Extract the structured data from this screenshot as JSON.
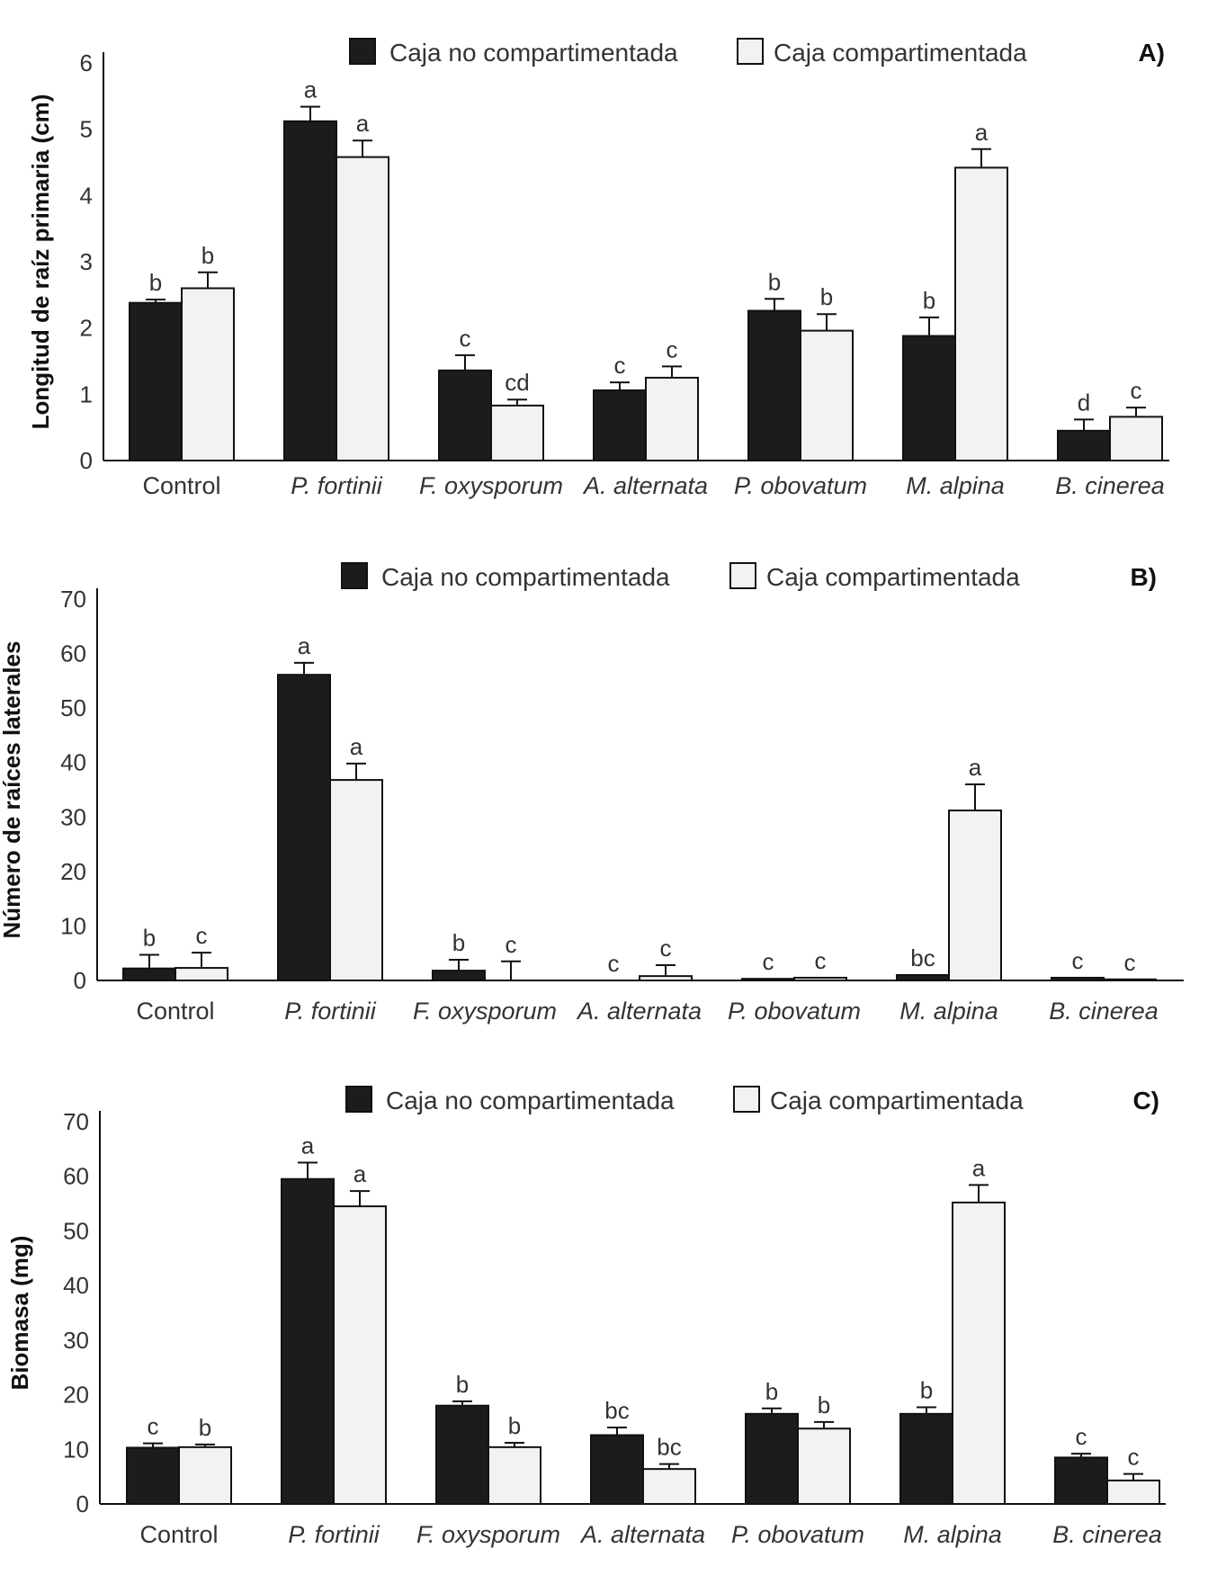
{
  "legend": {
    "series_1": "Caja no compartimentada",
    "series_2": "Caja compartimentada"
  },
  "colors": {
    "series_1": "#1c1c1c",
    "series_2": "#f2f2f2",
    "axis": "#111111"
  },
  "chart_data": [
    {
      "type": "bar",
      "panel_label": "A)",
      "ylabel": "Longitud de raíz primaria (cm)",
      "ylim": [
        0,
        6
      ],
      "yticks": [
        0,
        1,
        2,
        3,
        4,
        5,
        6
      ],
      "categories": [
        "Control",
        "P. fortinii",
        "F. oxysporum",
        "A. alternata",
        "P. obovatum",
        "M. alpina",
        "B. cinerea"
      ],
      "italic_categories": [
        false,
        true,
        true,
        true,
        true,
        true,
        true
      ],
      "series": [
        {
          "name": "Caja no compartimentada",
          "values": [
            2.38,
            5.12,
            1.36,
            1.06,
            2.26,
            1.88,
            0.45
          ],
          "errors": [
            0.05,
            0.22,
            0.23,
            0.12,
            0.18,
            0.28,
            0.17
          ],
          "sig": [
            "b",
            "a",
            "c",
            "c",
            "b",
            "b",
            "d"
          ]
        },
        {
          "name": "Caja compartimentada",
          "values": [
            2.6,
            4.58,
            0.83,
            1.25,
            1.96,
            4.42,
            0.66
          ],
          "errors": [
            0.24,
            0.25,
            0.09,
            0.17,
            0.25,
            0.28,
            0.14
          ],
          "sig": [
            "b",
            "a",
            "cd",
            "c",
            "b",
            "a",
            "c"
          ]
        }
      ]
    },
    {
      "type": "bar",
      "panel_label": "B)",
      "ylabel": "Número de raíces laterales",
      "ylim": [
        0,
        70
      ],
      "yticks": [
        0,
        10,
        20,
        30,
        40,
        50,
        60,
        70
      ],
      "categories": [
        "Control",
        "P. fortinii",
        "F. oxysporum",
        "A. alternata",
        "P. obovatum",
        "M. alpina",
        "B. cinerea"
      ],
      "italic_categories": [
        false,
        true,
        true,
        true,
        true,
        true,
        true
      ],
      "series": [
        {
          "name": "Caja no compartimentada",
          "values": [
            2.2,
            56.1,
            1.8,
            0,
            0.3,
            1,
            0.5
          ],
          "errors": [
            2.5,
            2.2,
            2,
            0,
            0,
            0,
            0
          ],
          "sig": [
            "b",
            "a",
            "b",
            "c",
            "c",
            "bc",
            "c"
          ]
        },
        {
          "name": "Caja compartimentada",
          "values": [
            2.3,
            36.8,
            0,
            0.8,
            0.5,
            31.2,
            0.2
          ],
          "errors": [
            2.8,
            3,
            3.5,
            2,
            0,
            4.8,
            0
          ],
          "sig": [
            "c",
            "a",
            "c",
            "c",
            "c",
            "a",
            "c"
          ]
        }
      ]
    },
    {
      "type": "bar",
      "panel_label": "C)",
      "ylabel": "Biomasa (mg)",
      "ylim": [
        0,
        70
      ],
      "yticks": [
        0,
        10,
        20,
        30,
        40,
        50,
        60,
        70
      ],
      "categories": [
        "Control",
        "P. fortinii",
        "F. oxysporum",
        "A. alternata",
        "P. obovatum",
        "M. alpina",
        "B. cinerea"
      ],
      "italic_categories": [
        false,
        true,
        true,
        true,
        true,
        true,
        true
      ],
      "series": [
        {
          "name": "Caja no compartimentada",
          "values": [
            10.3,
            59.5,
            18,
            12.6,
            16.5,
            16.5,
            8.5
          ],
          "errors": [
            0.8,
            3,
            0.8,
            1.4,
            1,
            1.2,
            0.7
          ],
          "sig": [
            "c",
            "a",
            "b",
            "bc",
            "b",
            "b",
            "c"
          ]
        },
        {
          "name": "Caja compartimentada",
          "values": [
            10.4,
            54.5,
            10.4,
            6.4,
            13.8,
            55.2,
            4.3
          ],
          "errors": [
            0.5,
            2.8,
            0.8,
            0.9,
            1.2,
            3.2,
            1.2
          ],
          "sig": [
            "b",
            "a",
            "b",
            "bc",
            "b",
            "a",
            "c"
          ]
        }
      ]
    }
  ]
}
